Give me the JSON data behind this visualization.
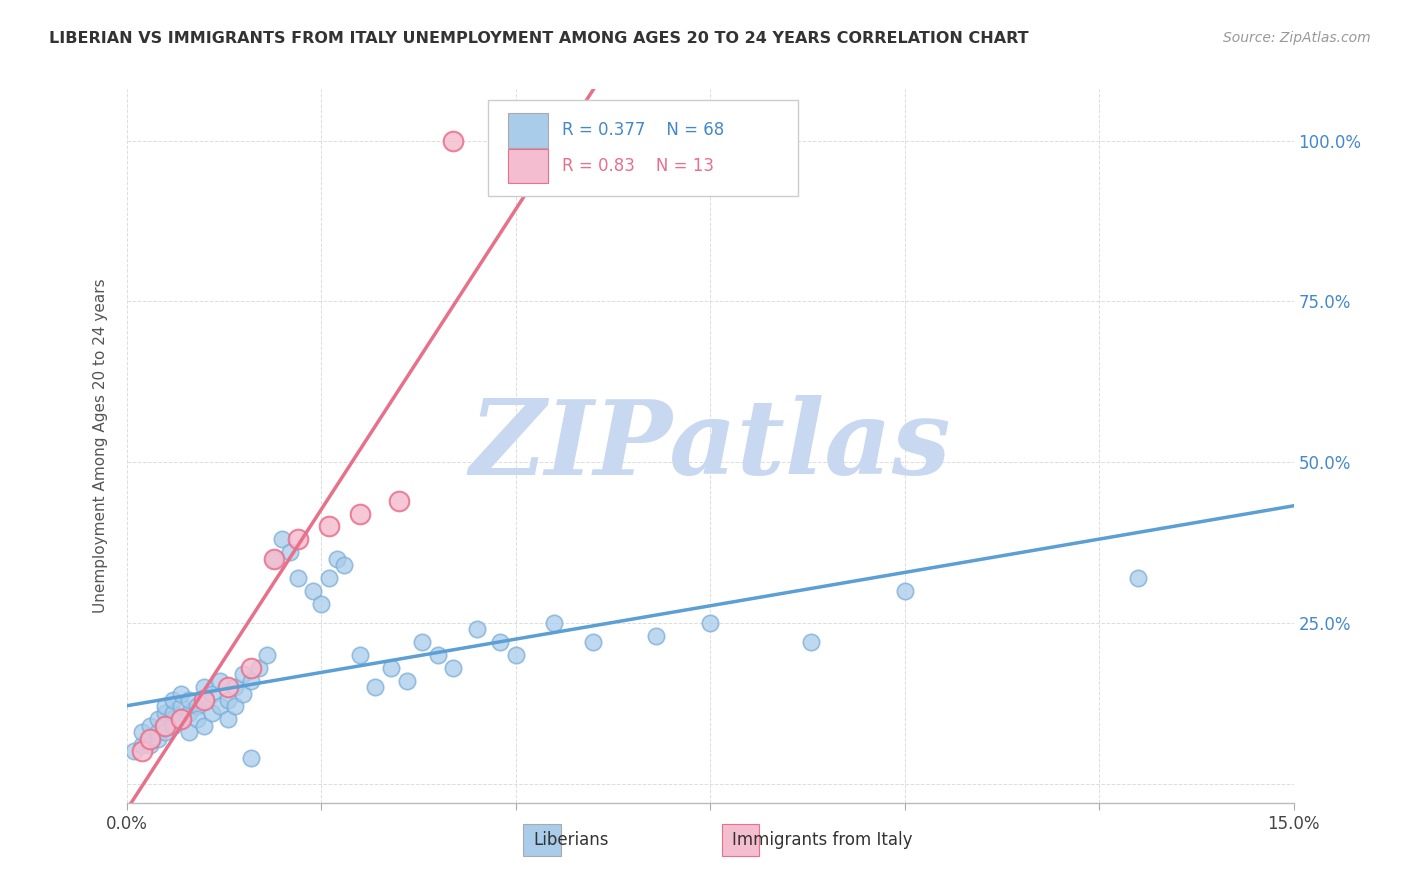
{
  "title": "LIBERIAN VS IMMIGRANTS FROM ITALY UNEMPLOYMENT AMONG AGES 20 TO 24 YEARS CORRELATION CHART",
  "source": "Source: ZipAtlas.com",
  "ylabel": "Unemployment Among Ages 20 to 24 years",
  "xlim": [
    0.0,
    0.15
  ],
  "ylim": [
    -0.03,
    1.08
  ],
  "yticks": [
    0.0,
    0.25,
    0.5,
    0.75,
    1.0
  ],
  "yticklabels_right": [
    "",
    "25.0%",
    "50.0%",
    "75.0%",
    "100.0%"
  ],
  "xtick_positions": [
    0.0,
    0.025,
    0.05,
    0.075,
    0.1,
    0.125,
    0.15
  ],
  "xtick_labels": [
    "0.0%",
    "",
    "",
    "",
    "",
    "",
    "15.0%"
  ],
  "liberian_R": 0.377,
  "liberian_N": 68,
  "italy_R": 0.83,
  "italy_N": 13,
  "liberian_color": "#A8CCEA",
  "liberian_edge": "#7AADD8",
  "italy_color": "#F5BDD0",
  "italy_edge": "#E8708A",
  "liberian_line_color": "#5B9FD4",
  "italy_line_color": "#E8708A",
  "watermark": "ZIPatlas",
  "watermark_color": "#C8D8F0",
  "liberian_x": [
    0.001,
    0.002,
    0.002,
    0.003,
    0.003,
    0.003,
    0.004,
    0.004,
    0.004,
    0.005,
    0.005,
    0.005,
    0.005,
    0.006,
    0.006,
    0.006,
    0.006,
    0.007,
    0.007,
    0.007,
    0.008,
    0.008,
    0.008,
    0.009,
    0.009,
    0.01,
    0.01,
    0.01,
    0.011,
    0.011,
    0.012,
    0.012,
    0.013,
    0.013,
    0.014,
    0.014,
    0.015,
    0.015,
    0.016,
    0.016,
    0.017,
    0.018,
    0.019,
    0.02,
    0.021,
    0.022,
    0.024,
    0.025,
    0.026,
    0.027,
    0.028,
    0.03,
    0.032,
    0.034,
    0.036,
    0.038,
    0.04,
    0.042,
    0.045,
    0.048,
    0.05,
    0.055,
    0.06,
    0.068,
    0.075,
    0.088,
    0.1,
    0.13
  ],
  "liberian_y": [
    0.05,
    0.06,
    0.08,
    0.07,
    0.09,
    0.06,
    0.08,
    0.1,
    0.07,
    0.09,
    0.11,
    0.08,
    0.12,
    0.1,
    0.09,
    0.11,
    0.13,
    0.1,
    0.12,
    0.14,
    0.11,
    0.13,
    0.08,
    0.12,
    0.1,
    0.13,
    0.15,
    0.09,
    0.14,
    0.11,
    0.12,
    0.16,
    0.13,
    0.1,
    0.15,
    0.12,
    0.17,
    0.14,
    0.04,
    0.16,
    0.18,
    0.2,
    0.35,
    0.38,
    0.36,
    0.32,
    0.3,
    0.28,
    0.32,
    0.35,
    0.34,
    0.2,
    0.15,
    0.18,
    0.16,
    0.22,
    0.2,
    0.18,
    0.24,
    0.22,
    0.2,
    0.25,
    0.22,
    0.23,
    0.25,
    0.22,
    0.3,
    0.32
  ],
  "italy_x": [
    0.002,
    0.003,
    0.005,
    0.007,
    0.01,
    0.013,
    0.016,
    0.019,
    0.022,
    0.026,
    0.03,
    0.035,
    0.042
  ],
  "italy_y": [
    0.05,
    0.07,
    0.09,
    0.1,
    0.13,
    0.15,
    0.18,
    0.35,
    0.38,
    0.4,
    0.42,
    0.44,
    1.0
  ]
}
